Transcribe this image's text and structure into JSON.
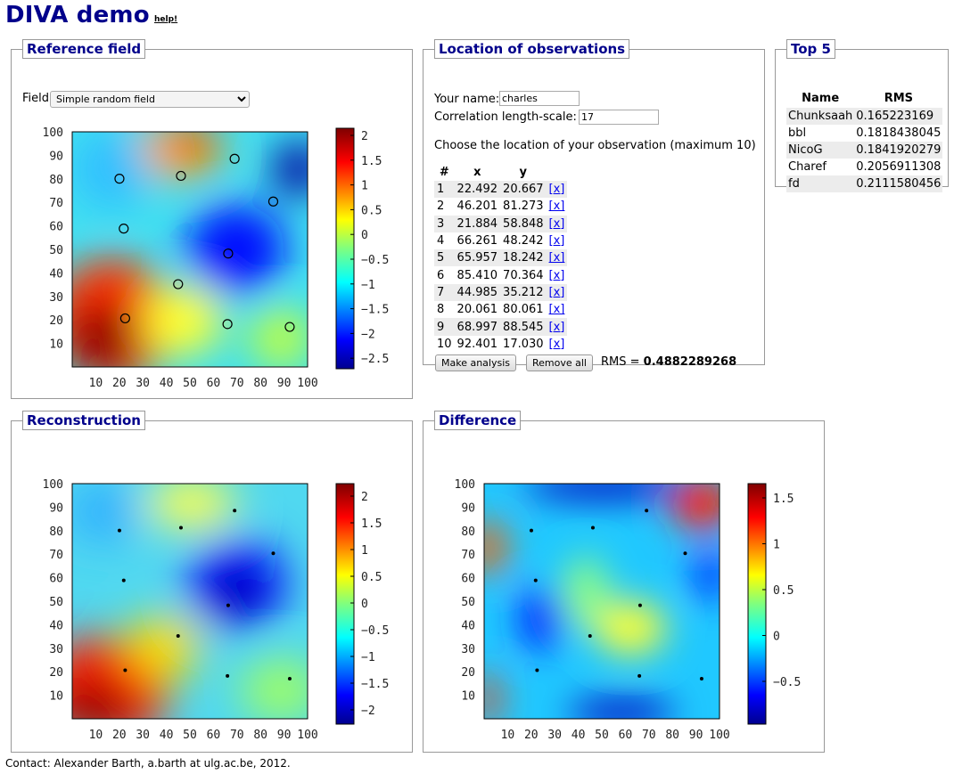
{
  "header": {
    "title": "DIVA demo",
    "help": "help!"
  },
  "reference": {
    "legend": "Reference field",
    "field_label": "Field",
    "field_value": "Simple random field",
    "cb_ticks": [
      "2",
      "1.5",
      "1",
      "0.5",
      "0",
      "−0.5",
      "−1",
      "−1.5",
      "−2",
      "−2.5"
    ]
  },
  "location": {
    "legend": "Location of observations",
    "name_label": "Your name:",
    "name_value": "charles",
    "len_label": "Correlation length-scale:",
    "len_value": "17",
    "instruction": "Choose the location of your observation (maximum 10)",
    "headers": [
      "#",
      "x",
      "y"
    ],
    "rows": [
      {
        "n": "1",
        "x": "22.492",
        "y": "20.667",
        "del": "[x]"
      },
      {
        "n": "2",
        "x": "46.201",
        "y": "81.273",
        "del": "[x]"
      },
      {
        "n": "3",
        "x": "21.884",
        "y": "58.848",
        "del": "[x]"
      },
      {
        "n": "4",
        "x": "66.261",
        "y": "48.242",
        "del": "[x]"
      },
      {
        "n": "5",
        "x": "65.957",
        "y": "18.242",
        "del": "[x]"
      },
      {
        "n": "6",
        "x": "85.410",
        "y": "70.364",
        "del": "[x]"
      },
      {
        "n": "7",
        "x": "44.985",
        "y": "35.212",
        "del": "[x]"
      },
      {
        "n": "8",
        "x": "20.061",
        "y": "80.061",
        "del": "[x]"
      },
      {
        "n": "9",
        "x": "68.997",
        "y": "88.545",
        "del": "[x]"
      },
      {
        "n": "10",
        "x": "92.401",
        "y": "17.030",
        "del": "[x]"
      }
    ],
    "make_label": "Make analysis",
    "remove_label": "Remove all",
    "rms_label": "RMS = ",
    "rms_value": "0.4882289268"
  },
  "top5": {
    "legend": "Top 5",
    "headers": [
      "Name",
      "RMS"
    ],
    "rows": [
      {
        "name": "Chunksaah",
        "rms": "0.165223169"
      },
      {
        "name": "bbl",
        "rms": "0.1818438045"
      },
      {
        "name": "NicoG",
        "rms": "0.1841920279"
      },
      {
        "name": "Charef",
        "rms": "0.2056911308"
      },
      {
        "name": "fd",
        "rms": "0.2111580456"
      }
    ]
  },
  "reconstruction": {
    "legend": "Reconstruction",
    "cb_ticks": [
      "2",
      "1.5",
      "1",
      "0.5",
      "0",
      "−0.5",
      "−1",
      "−1.5",
      "−2"
    ]
  },
  "difference": {
    "legend": "Difference",
    "cb_ticks": [
      "1.5",
      "1",
      "0.5",
      "0",
      "−0.5"
    ]
  },
  "axes": {
    "x_ticks": [
      "10",
      "20",
      "30",
      "40",
      "50",
      "60",
      "70",
      "80",
      "90",
      "100"
    ],
    "y_ticks": [
      "100",
      "90",
      "80",
      "70",
      "60",
      "50",
      "40",
      "30",
      "20",
      "10"
    ]
  },
  "contact": "Contact: Alexander Barth, a.barth at ulg.ac.be, 2012."
}
